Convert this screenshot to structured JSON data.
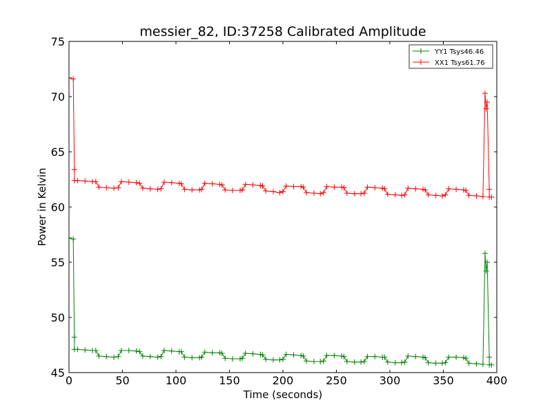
{
  "chart_data": {
    "type": "line",
    "title": "messier_82, ID:37258 Calibrated Amplitude",
    "xlabel": "Time (seconds)",
    "ylabel": "Power in Kelvin",
    "xlim": [
      0,
      400
    ],
    "ylim": [
      45,
      75
    ],
    "xticks": [
      "0",
      "50",
      "100",
      "150",
      "200",
      "250",
      "300",
      "350",
      "400"
    ],
    "yticks": [
      "45",
      "50",
      "55",
      "60",
      "65",
      "70",
      "75"
    ],
    "grid": false,
    "legend_position": "top-right",
    "series": [
      {
        "name": "YY1 Tsys46.46",
        "color": "#008000",
        "marker": "+",
        "points": [
          [
            0,
            57.2
          ],
          [
            4,
            57.1
          ],
          [
            5,
            48.2
          ],
          [
            5,
            47.1
          ],
          [
            8,
            47.1
          ],
          [
            15,
            47.05
          ],
          [
            22,
            47.0
          ],
          [
            25,
            47.0
          ],
          [
            28,
            46.5
          ],
          [
            35,
            46.45
          ],
          [
            42,
            46.4
          ],
          [
            46,
            46.45
          ],
          [
            49,
            47.0
          ],
          [
            56,
            47.0
          ],
          [
            63,
            46.95
          ],
          [
            66,
            46.9
          ],
          [
            69,
            46.5
          ],
          [
            76,
            46.45
          ],
          [
            83,
            46.4
          ],
          [
            86,
            46.45
          ],
          [
            89,
            47.0
          ],
          [
            96,
            46.95
          ],
          [
            103,
            46.9
          ],
          [
            105,
            46.9
          ],
          [
            108,
            46.4
          ],
          [
            115,
            46.35
          ],
          [
            122,
            46.35
          ],
          [
            124,
            46.4
          ],
          [
            127,
            46.85
          ],
          [
            134,
            46.8
          ],
          [
            141,
            46.8
          ],
          [
            143,
            46.75
          ],
          [
            146,
            46.3
          ],
          [
            153,
            46.25
          ],
          [
            160,
            46.25
          ],
          [
            162,
            46.3
          ],
          [
            165,
            46.75
          ],
          [
            172,
            46.7
          ],
          [
            179,
            46.65
          ],
          [
            181,
            46.6
          ],
          [
            184,
            46.2
          ],
          [
            191,
            46.15
          ],
          [
            197,
            46.15
          ],
          [
            200,
            46.2
          ],
          [
            203,
            46.65
          ],
          [
            210,
            46.6
          ],
          [
            217,
            46.55
          ],
          [
            219,
            46.5
          ],
          [
            222,
            46.05
          ],
          [
            229,
            46.0
          ],
          [
            235,
            46.0
          ],
          [
            238,
            46.05
          ],
          [
            241,
            46.55
          ],
          [
            248,
            46.55
          ],
          [
            255,
            46.5
          ],
          [
            257,
            46.45
          ],
          [
            260,
            46.0
          ],
          [
            267,
            45.95
          ],
          [
            273,
            45.95
          ],
          [
            276,
            46.0
          ],
          [
            279,
            46.45
          ],
          [
            286,
            46.45
          ],
          [
            293,
            46.4
          ],
          [
            295,
            46.4
          ],
          [
            298,
            45.95
          ],
          [
            305,
            45.9
          ],
          [
            311,
            45.9
          ],
          [
            314,
            45.95
          ],
          [
            317,
            46.5
          ],
          [
            324,
            46.45
          ],
          [
            331,
            46.4
          ],
          [
            333,
            46.35
          ],
          [
            336,
            45.9
          ],
          [
            343,
            45.85
          ],
          [
            349,
            45.85
          ],
          [
            352,
            45.9
          ],
          [
            355,
            46.4
          ],
          [
            362,
            46.4
          ],
          [
            369,
            46.35
          ],
          [
            371,
            46.3
          ],
          [
            374,
            45.85
          ],
          [
            381,
            45.8
          ],
          [
            387,
            45.75
          ],
          [
            389,
            55.8
          ],
          [
            390,
            54.2
          ],
          [
            391,
            55.0
          ],
          [
            393,
            46.4
          ],
          [
            393,
            45.7
          ],
          [
            395,
            45.7
          ]
        ]
      },
      {
        "name": "XX1 Tsys61.76",
        "color": "#ff0000",
        "marker": "+",
        "points": [
          [
            0,
            71.7
          ],
          [
            4,
            71.6
          ],
          [
            5,
            63.4
          ],
          [
            5,
            62.4
          ],
          [
            8,
            62.4
          ],
          [
            15,
            62.35
          ],
          [
            22,
            62.3
          ],
          [
            25,
            62.3
          ],
          [
            28,
            61.8
          ],
          [
            35,
            61.75
          ],
          [
            42,
            61.7
          ],
          [
            46,
            61.75
          ],
          [
            49,
            62.3
          ],
          [
            56,
            62.25
          ],
          [
            63,
            62.2
          ],
          [
            66,
            62.15
          ],
          [
            69,
            61.7
          ],
          [
            76,
            61.65
          ],
          [
            83,
            61.6
          ],
          [
            86,
            61.65
          ],
          [
            89,
            62.25
          ],
          [
            96,
            62.2
          ],
          [
            103,
            62.15
          ],
          [
            105,
            62.1
          ],
          [
            108,
            61.6
          ],
          [
            115,
            61.55
          ],
          [
            122,
            61.55
          ],
          [
            124,
            61.6
          ],
          [
            127,
            62.15
          ],
          [
            134,
            62.1
          ],
          [
            141,
            62.05
          ],
          [
            143,
            62.0
          ],
          [
            146,
            61.55
          ],
          [
            153,
            61.5
          ],
          [
            160,
            61.5
          ],
          [
            162,
            61.55
          ],
          [
            165,
            62.05
          ],
          [
            172,
            62.0
          ],
          [
            179,
            61.95
          ],
          [
            181,
            61.9
          ],
          [
            184,
            61.45
          ],
          [
            191,
            61.4
          ],
          [
            197,
            61.3
          ],
          [
            200,
            61.4
          ],
          [
            203,
            61.9
          ],
          [
            210,
            61.85
          ],
          [
            217,
            61.85
          ],
          [
            219,
            61.8
          ],
          [
            222,
            61.3
          ],
          [
            229,
            61.25
          ],
          [
            235,
            61.2
          ],
          [
            238,
            61.3
          ],
          [
            241,
            61.85
          ],
          [
            248,
            61.8
          ],
          [
            255,
            61.8
          ],
          [
            257,
            61.75
          ],
          [
            260,
            61.25
          ],
          [
            267,
            61.2
          ],
          [
            273,
            61.2
          ],
          [
            276,
            61.25
          ],
          [
            279,
            61.8
          ],
          [
            286,
            61.75
          ],
          [
            293,
            61.7
          ],
          [
            295,
            61.65
          ],
          [
            298,
            61.15
          ],
          [
            305,
            61.1
          ],
          [
            311,
            61.05
          ],
          [
            314,
            61.1
          ],
          [
            317,
            61.7
          ],
          [
            324,
            61.65
          ],
          [
            331,
            61.6
          ],
          [
            333,
            61.55
          ],
          [
            336,
            61.1
          ],
          [
            343,
            61.05
          ],
          [
            349,
            61.0
          ],
          [
            352,
            61.1
          ],
          [
            355,
            61.65
          ],
          [
            362,
            61.6
          ],
          [
            369,
            61.55
          ],
          [
            371,
            61.5
          ],
          [
            374,
            61.05
          ],
          [
            381,
            61.0
          ],
          [
            387,
            60.95
          ],
          [
            389,
            70.3
          ],
          [
            390,
            68.9
          ],
          [
            391,
            69.5
          ],
          [
            393,
            61.6
          ],
          [
            393,
            60.9
          ],
          [
            395,
            60.9
          ]
        ]
      }
    ]
  }
}
